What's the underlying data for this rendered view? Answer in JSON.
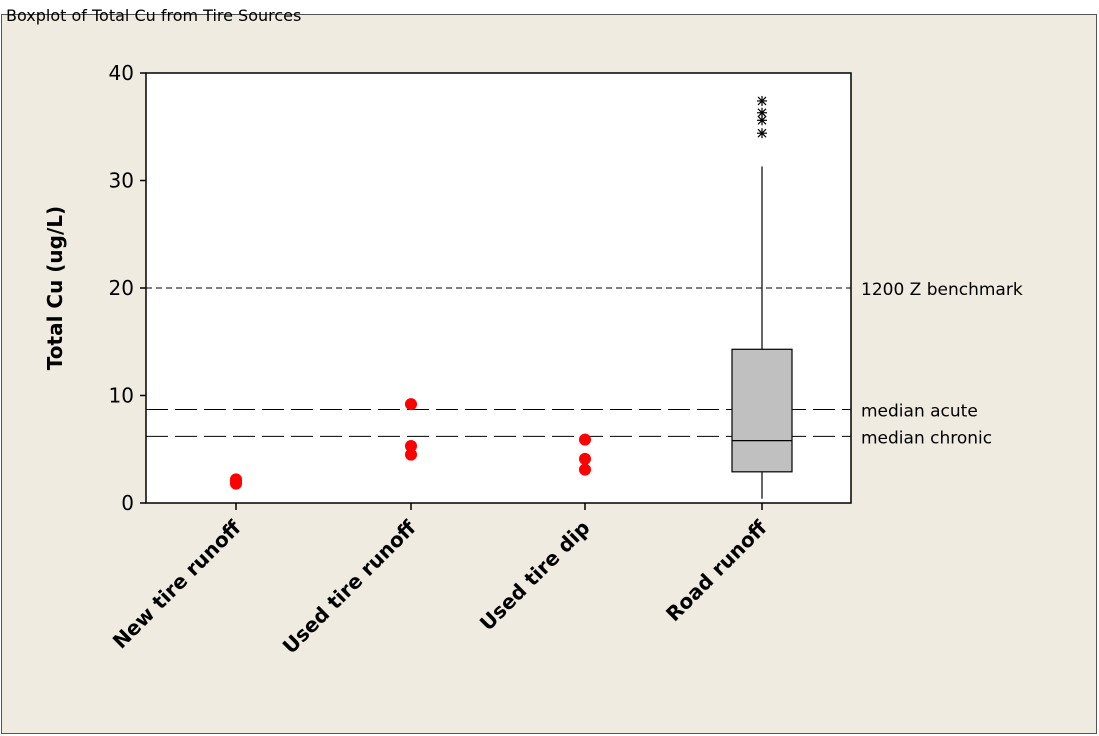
{
  "header": {
    "text": "Boxplot of Total Cu from Tire Sources"
  },
  "chart_data": {
    "type": "boxplot",
    "title": "Boxplot of Total Cu from Tire Sources",
    "xlabel": "",
    "ylabel": "Total Cu (ug/L)",
    "ylim": [
      0,
      40
    ],
    "yticks": [
      0,
      10,
      20,
      30,
      40
    ],
    "grid": false,
    "categories": [
      "New tire runoff",
      "Used tire runoff",
      "Used tire dip",
      "Road runoff"
    ],
    "points": [
      {
        "category": "New tire runoff",
        "values": [
          1.8,
          2.0,
          2.2
        ],
        "color": "#ff0000"
      },
      {
        "category": "Used tire runoff",
        "values": [
          4.5,
          5.3,
          9.2
        ],
        "color": "#ff0000"
      },
      {
        "category": "Used tire dip",
        "values": [
          3.1,
          4.1,
          5.9
        ],
        "color": "#ff0000"
      }
    ],
    "box": {
      "category": "Road runoff",
      "q1": 2.9,
      "median": 5.8,
      "q3": 14.3,
      "whisker_low": 0.4,
      "whisker_high": 31.3,
      "outliers": [
        34.4,
        35.6,
        36.3,
        37.4
      ],
      "fill": "#c0c0c0"
    },
    "reference_lines": [
      {
        "value": 20.0,
        "label": "1200 Z benchmark",
        "style": "short-dash"
      },
      {
        "value": 8.7,
        "label": "median acute",
        "style": "long-dash"
      },
      {
        "value": 6.2,
        "label": "median chronic",
        "style": "long-dash"
      }
    ]
  }
}
